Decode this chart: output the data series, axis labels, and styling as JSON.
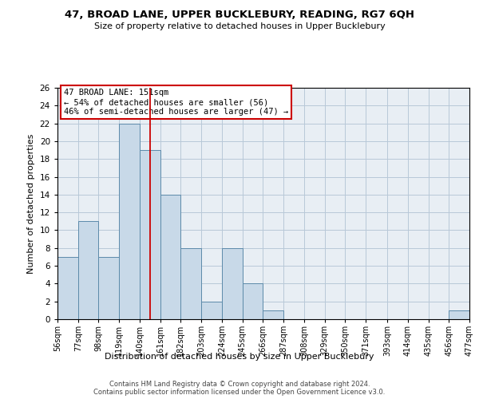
{
  "title": "47, BROAD LANE, UPPER BUCKLEBURY, READING, RG7 6QH",
  "subtitle": "Size of property relative to detached houses in Upper Bucklebury",
  "xlabel": "Distribution of detached houses by size in Upper Bucklebury",
  "ylabel": "Number of detached properties",
  "footer_lines": [
    "Contains HM Land Registry data © Crown copyright and database right 2024.",
    "Contains public sector information licensed under the Open Government Licence v3.0."
  ],
  "bin_edges": [
    56,
    77,
    98,
    119,
    140,
    161,
    182,
    203,
    224,
    245,
    266,
    287,
    308,
    329,
    350,
    371,
    393,
    414,
    435,
    456,
    477
  ],
  "bin_labels": [
    "56sqm",
    "77sqm",
    "98sqm",
    "119sqm",
    "140sqm",
    "161sqm",
    "182sqm",
    "203sqm",
    "224sqm",
    "245sqm",
    "266sqm",
    "287sqm",
    "308sqm",
    "329sqm",
    "350sqm",
    "371sqm",
    "393sqm",
    "414sqm",
    "435sqm",
    "456sqm",
    "477sqm"
  ],
  "counts": [
    7,
    11,
    7,
    22,
    19,
    14,
    8,
    2,
    8,
    4,
    1,
    0,
    0,
    0,
    0,
    0,
    0,
    0,
    0,
    1
  ],
  "ylim": [
    0,
    26
  ],
  "yticks": [
    0,
    2,
    4,
    6,
    8,
    10,
    12,
    14,
    16,
    18,
    20,
    22,
    24,
    26
  ],
  "bar_color": "#c8d9e8",
  "bar_edge_color": "#5c8aaa",
  "vline_x": 151,
  "vline_color": "#cc0000",
  "annotation_title": "47 BROAD LANE: 151sqm",
  "annotation_line2": "← 54% of detached houses are smaller (56)",
  "annotation_line3": "46% of semi-detached houses are larger (47) →",
  "annotation_box_edge": "#cc0000",
  "background_color": "#ffffff",
  "plot_bg_color": "#e8eef4",
  "grid_color": "#b8c8d8"
}
